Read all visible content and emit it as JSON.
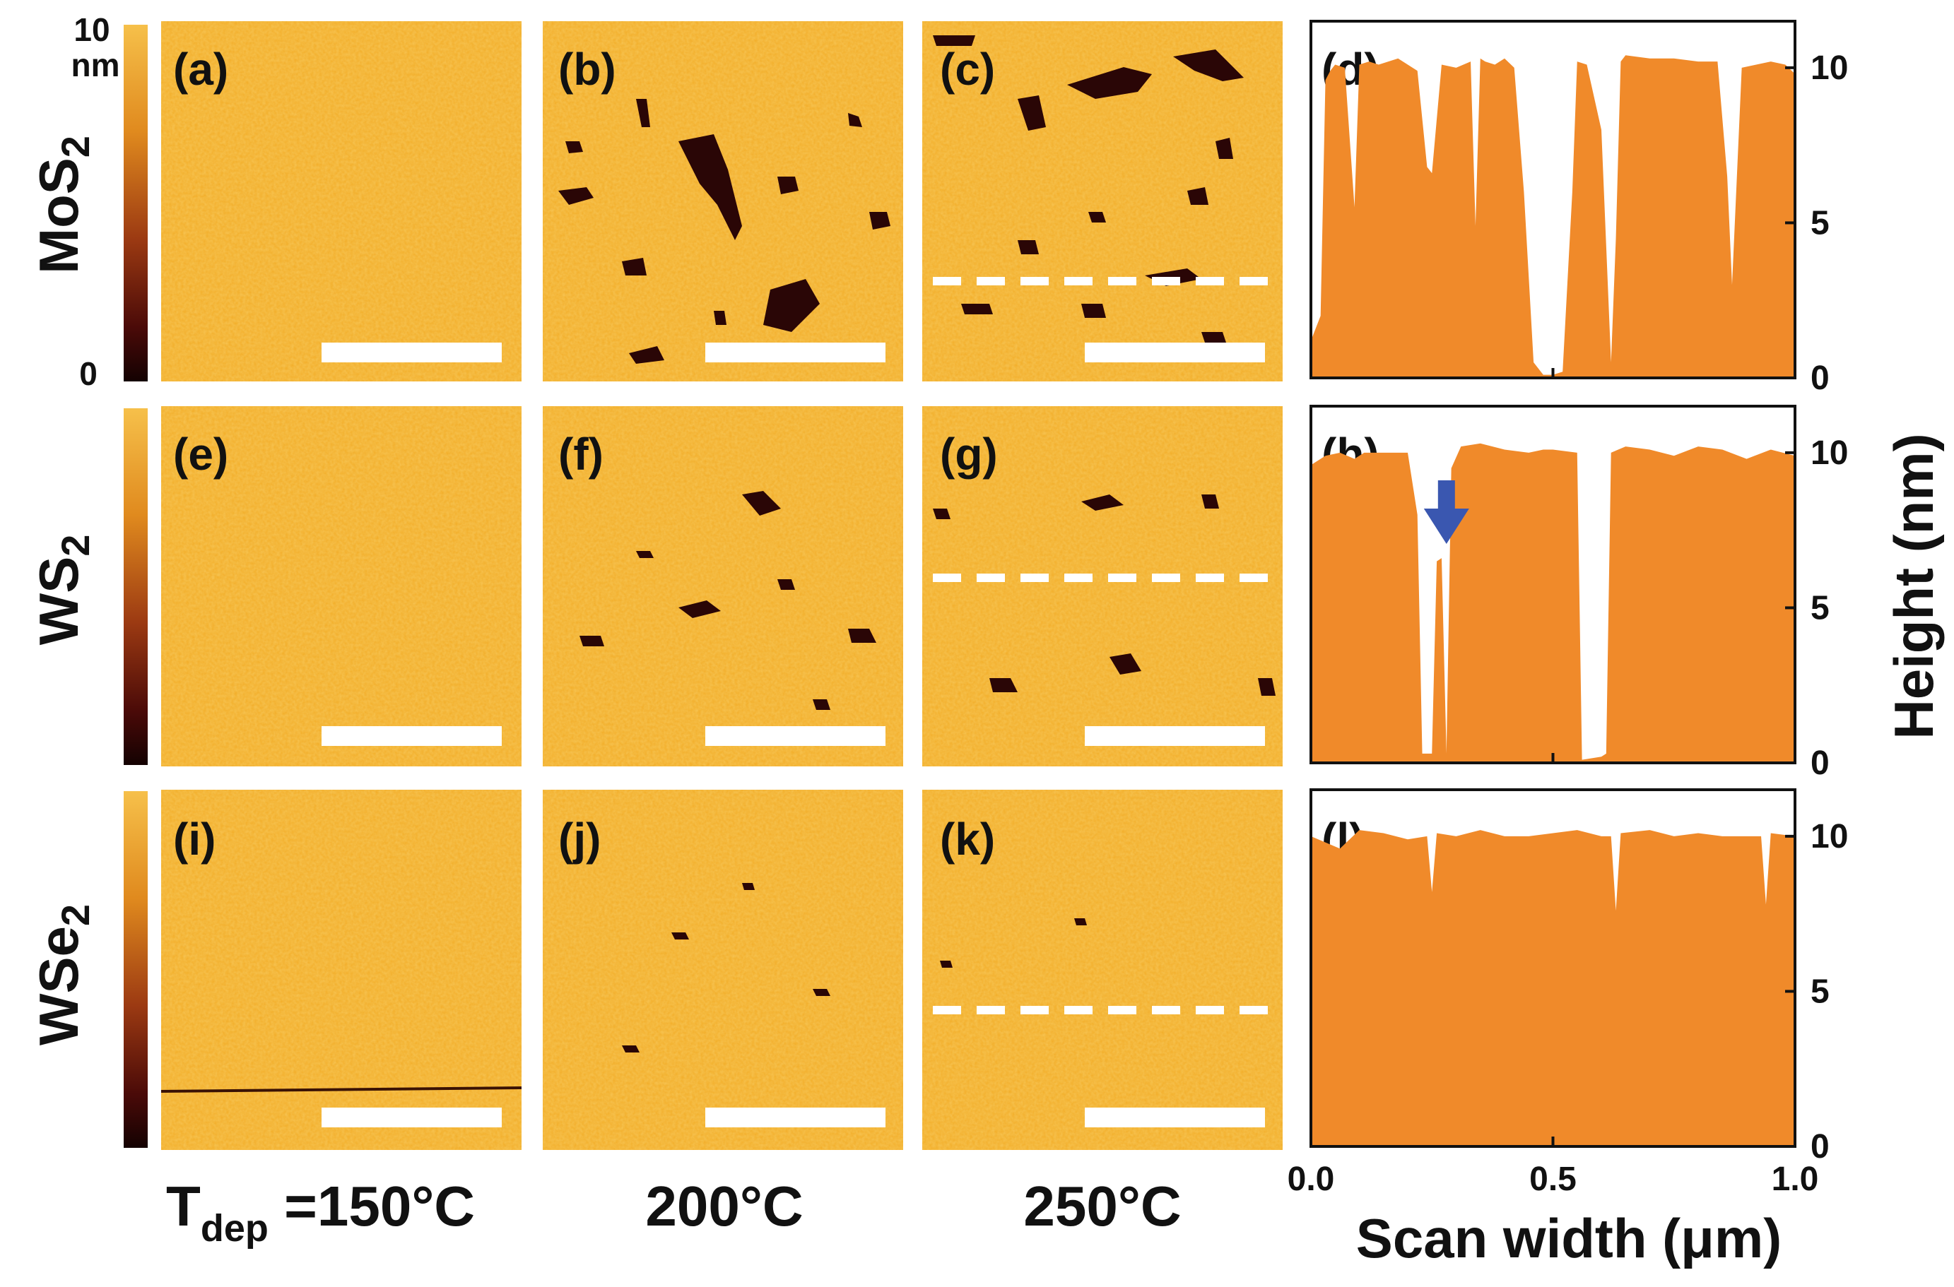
{
  "figure": {
    "row_labels": [
      {
        "base": "MoS",
        "sub": "2"
      },
      {
        "base": "WS",
        "sub": "2"
      },
      {
        "base": "WSe",
        "sub": "2"
      }
    ],
    "colorbar": {
      "max_label": "10",
      "unit_label": "nm",
      "min_label": "0"
    },
    "panel_labels": [
      "(a)",
      "(b)",
      "(c)",
      "(d)",
      "(e)",
      "(f)",
      "(g)",
      "(h)",
      "(i)",
      "(j)",
      "(k)",
      "(l)"
    ],
    "column_labels": {
      "tdep_main": "T",
      "tdep_sub": "dep",
      "first": " =150°C",
      "second": "200°C",
      "third": "250°C"
    },
    "colors": {
      "afm_base": "#f2ad28",
      "afm_light": "#f8c64a",
      "afm_pit": "#2a0606",
      "profile_fill": "#f08a2a",
      "arrow": "#3a57b0",
      "scale_bar": "#ffffff"
    }
  },
  "chart_data": [
    {
      "type": "area",
      "panel": "(d)",
      "xlim": [
        0,
        1.0
      ],
      "ylim": [
        0,
        11.5
      ],
      "yticks": [
        "0",
        "5",
        "10"
      ],
      "x": [
        0.0,
        0.02,
        0.03,
        0.04,
        0.05,
        0.07,
        0.09,
        0.1,
        0.12,
        0.14,
        0.18,
        0.22,
        0.24,
        0.25,
        0.27,
        0.3,
        0.33,
        0.34,
        0.35,
        0.36,
        0.38,
        0.4,
        0.42,
        0.44,
        0.46,
        0.48,
        0.5,
        0.52,
        0.54,
        0.55,
        0.57,
        0.6,
        0.62,
        0.63,
        0.64,
        0.65,
        0.7,
        0.75,
        0.8,
        0.82,
        0.84,
        0.86,
        0.87,
        0.89,
        0.92,
        0.95,
        0.98,
        1.0
      ],
      "y": [
        1.2,
        2.0,
        9.6,
        9.9,
        10.1,
        10.0,
        5.5,
        10.1,
        10.2,
        10.1,
        10.3,
        9.9,
        6.8,
        6.6,
        10.1,
        10.0,
        10.2,
        4.9,
        10.3,
        10.2,
        10.1,
        10.3,
        10.0,
        6.0,
        0.5,
        0.1,
        0.1,
        0.2,
        6.0,
        10.2,
        10.1,
        8.0,
        0.5,
        4.5,
        10.2,
        10.4,
        10.3,
        10.3,
        10.2,
        10.2,
        10.2,
        6.5,
        3.0,
        10.0,
        10.1,
        10.2,
        10.1,
        9.8
      ]
    },
    {
      "type": "area",
      "panel": "(h)",
      "xlim": [
        0,
        1.0
      ],
      "ylim": [
        0,
        11.5
      ],
      "yticks": [
        "0",
        "5",
        "10"
      ],
      "x": [
        0.0,
        0.03,
        0.06,
        0.09,
        0.11,
        0.2,
        0.22,
        0.23,
        0.25,
        0.26,
        0.27,
        0.28,
        0.29,
        0.31,
        0.35,
        0.4,
        0.45,
        0.48,
        0.5,
        0.55,
        0.56,
        0.6,
        0.61,
        0.62,
        0.65,
        0.7,
        0.75,
        0.8,
        0.85,
        0.9,
        0.95,
        1.0
      ],
      "y": [
        9.6,
        9.9,
        10.0,
        9.8,
        10.0,
        10.0,
        8.0,
        0.3,
        0.3,
        6.5,
        6.6,
        0.3,
        9.5,
        10.2,
        10.3,
        10.1,
        10.0,
        10.1,
        10.1,
        10.0,
        0.1,
        0.2,
        0.3,
        10.0,
        10.2,
        10.1,
        9.9,
        10.2,
        10.1,
        9.8,
        10.1,
        9.9
      ],
      "annotation": "arrow at x≈0.28"
    },
    {
      "type": "area",
      "panel": "(l)",
      "xlim": [
        0,
        1.0
      ],
      "ylim": [
        0,
        11.5
      ],
      "yticks": [
        "0",
        "5",
        "10"
      ],
      "xticks": [
        "0.0",
        "0.5",
        "1.0"
      ],
      "xlabel": "Scan width (μm)",
      "ylabel": "Height (nm)",
      "x": [
        0.0,
        0.03,
        0.06,
        0.1,
        0.15,
        0.2,
        0.24,
        0.25,
        0.26,
        0.3,
        0.35,
        0.4,
        0.45,
        0.5,
        0.55,
        0.6,
        0.62,
        0.63,
        0.64,
        0.7,
        0.75,
        0.8,
        0.85,
        0.9,
        0.93,
        0.94,
        0.95,
        1.0
      ],
      "y": [
        10.0,
        9.8,
        9.6,
        10.2,
        10.1,
        9.9,
        10.0,
        8.2,
        10.1,
        10.0,
        10.2,
        10.0,
        10.0,
        10.1,
        10.2,
        10.0,
        10.0,
        7.6,
        10.1,
        10.2,
        10.0,
        10.1,
        10.0,
        10.0,
        10.0,
        7.8,
        10.1,
        10.0
      ]
    }
  ]
}
